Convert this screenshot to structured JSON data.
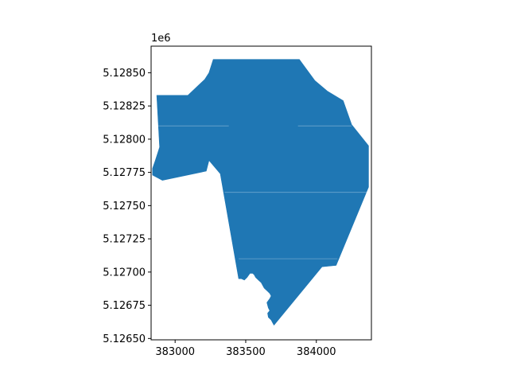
{
  "figure": {
    "offset_label": "1e6"
  },
  "chart_data": {
    "type": "map",
    "geometry": "polygon",
    "fill_color": "#1f77b4",
    "edge_color": "#ffffff",
    "grid": false,
    "xlim": [
      382830,
      384390
    ],
    "ylim": [
      5126490,
      5128700
    ],
    "x_ticks": [
      383000,
      383500,
      384000
    ],
    "x_tick_labels": [
      "383000",
      "383500",
      "384000"
    ],
    "y_ticks": [
      5126500,
      5126750,
      5127000,
      5127250,
      5127500,
      5127750,
      5128000,
      5128250,
      5128500
    ],
    "y_tick_labels": [
      "5.12650",
      "5.12675",
      "5.12700",
      "5.12725",
      "5.12750",
      "5.12775",
      "5.12800",
      "5.12825",
      "5.12850"
    ],
    "outline": [
      [
        383270,
        5128600
      ],
      [
        383880,
        5128600
      ],
      [
        383990,
        5128440
      ],
      [
        384080,
        5128360
      ],
      [
        384190,
        5128290
      ],
      [
        384250,
        5128110
      ],
      [
        384370,
        5127950
      ],
      [
        384370,
        5127640
      ],
      [
        384140,
        5127050
      ],
      [
        384040,
        5127040
      ],
      [
        383700,
        5126600
      ],
      [
        383690,
        5126620
      ],
      [
        383680,
        5126640
      ],
      [
        383660,
        5126660
      ],
      [
        383655,
        5126690
      ],
      [
        383670,
        5126710
      ],
      [
        383660,
        5126730
      ],
      [
        383650,
        5126770
      ],
      [
        383670,
        5126800
      ],
      [
        383680,
        5126820
      ],
      [
        383670,
        5126840
      ],
      [
        383650,
        5126860
      ],
      [
        383630,
        5126880
      ],
      [
        383610,
        5126920
      ],
      [
        383590,
        5126940
      ],
      [
        383570,
        5126960
      ],
      [
        383560,
        5126980
      ],
      [
        383550,
        5126990
      ],
      [
        383530,
        5126990
      ],
      [
        383510,
        5126960
      ],
      [
        383490,
        5126940
      ],
      [
        383470,
        5126950
      ],
      [
        383450,
        5126950
      ],
      [
        383320,
        5127740
      ],
      [
        383240,
        5127840
      ],
      [
        383220,
        5127760
      ],
      [
        382910,
        5127690
      ],
      [
        382840,
        5127730
      ],
      [
        382840,
        5127780
      ],
      [
        382860,
        5127840
      ],
      [
        382890,
        5127940
      ],
      [
        382870,
        5128330
      ],
      [
        383090,
        5128330
      ],
      [
        383210,
        5128450
      ],
      [
        383240,
        5128500
      ]
    ],
    "internal_boundaries": [
      {
        "y": 5128100,
        "x_from": 382880,
        "x_to": 383380
      },
      {
        "y": 5128100,
        "x_from": 383870,
        "x_to": 384250
      },
      {
        "y": 5127600,
        "x_from": 383350,
        "x_to": 384370
      },
      {
        "y": 5127100,
        "x_from": 383450,
        "x_to": 384150
      }
    ]
  }
}
